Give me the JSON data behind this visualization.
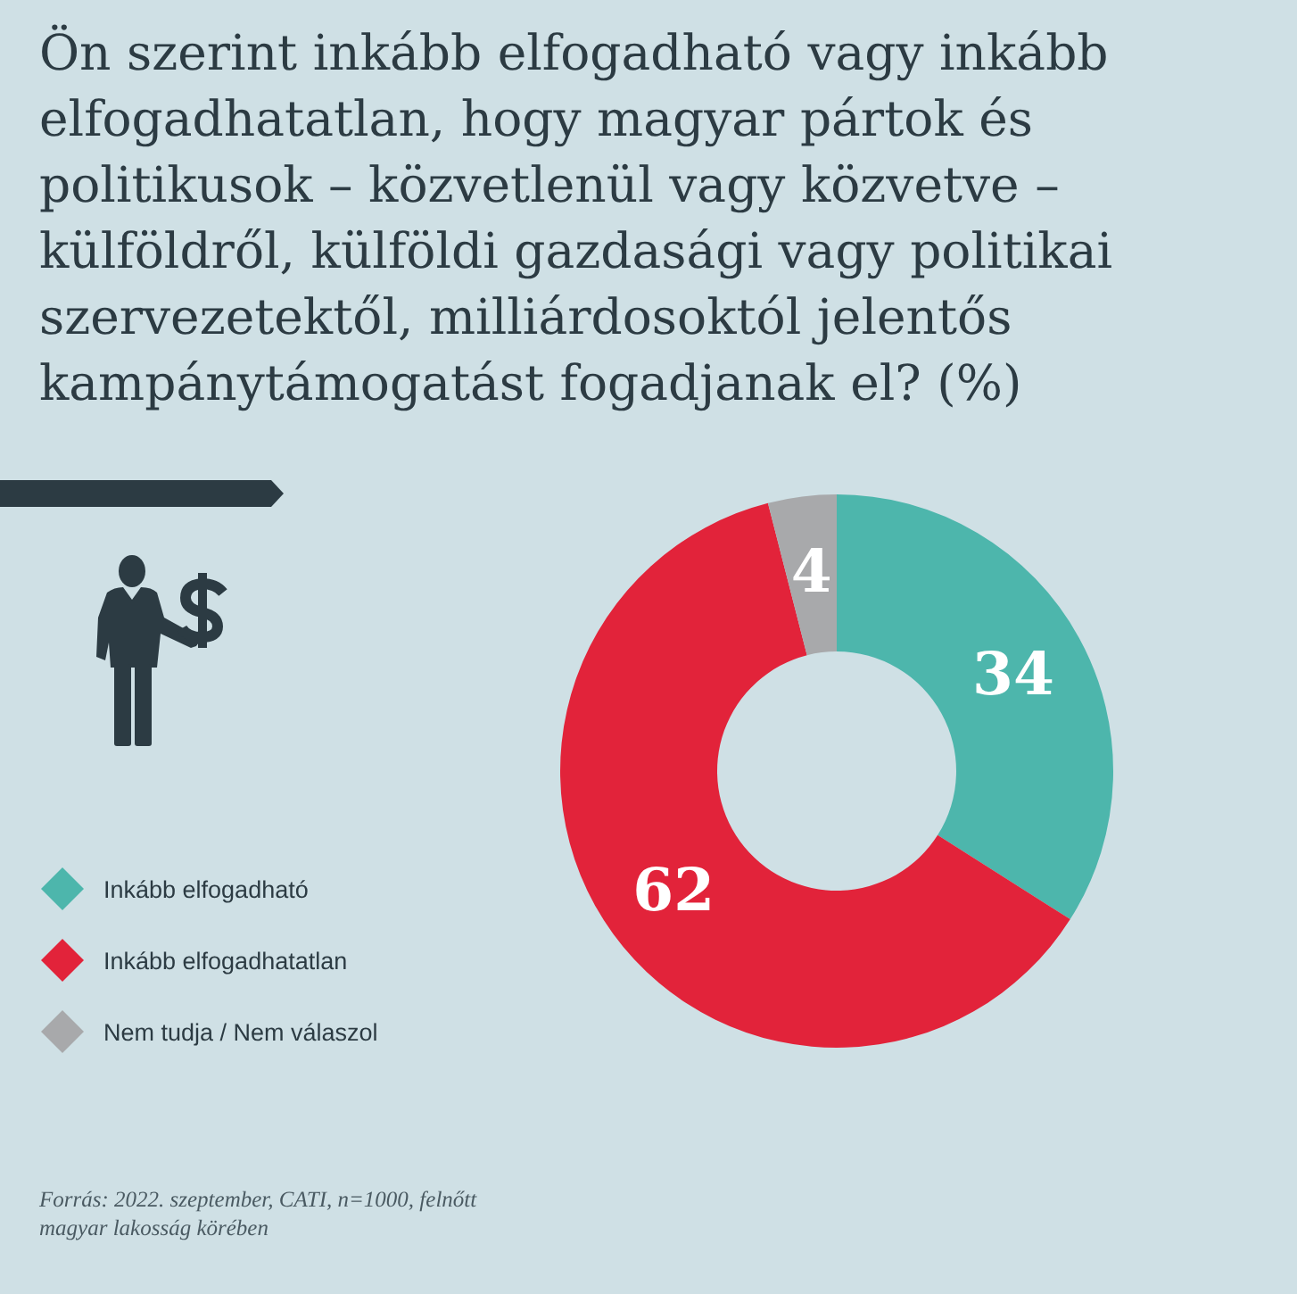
{
  "chart_data": {
    "type": "donut",
    "title": "Ön szerint inkább elfogadható vagy inkább elfogadhatatlan, hogy magyar pártok és politikusok – közvetlenül vagy közvetve – külföldről, külföldi gazdasági vagy politikai szervezetektől, milliárdosoktól jelentős kampánytámogatást fogadjanak el? (%)",
    "categories": [
      "Inkább elfogadható",
      "Inkább elfogadhatatlan",
      "Nem tudja / Nem válaszol"
    ],
    "values": [
      34,
      62,
      4
    ],
    "colors": [
      "#4db6ac",
      "#e2233a",
      "#a8a9ab"
    ],
    "data_labels": true,
    "legend": "left",
    "annotations": [
      "Forrás: 2022. szeptember, CATI, n=1000, felnőtt magyar lakosság körében"
    ]
  }
}
